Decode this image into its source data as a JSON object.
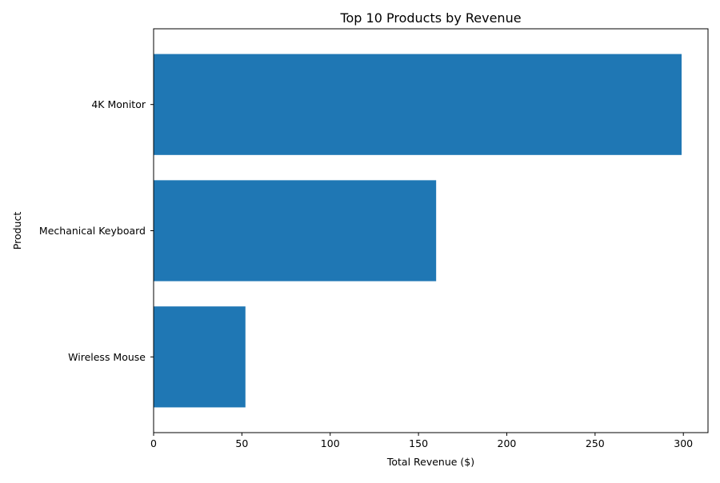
{
  "chart_data": {
    "type": "bar",
    "orientation": "horizontal",
    "title": "Top 10 Products by Revenue",
    "xlabel": "Total Revenue ($)",
    "ylabel": "Product",
    "categories": [
      "4K Monitor",
      "Mechanical Keyboard",
      "Wireless Mouse"
    ],
    "values": [
      299,
      160,
      52
    ],
    "xlim": [
      0,
      313.95
    ],
    "xticks": [
      0,
      50,
      100,
      150,
      200,
      250,
      300
    ],
    "bar_color": "#1f77b4",
    "grid": false,
    "legend": "none"
  }
}
